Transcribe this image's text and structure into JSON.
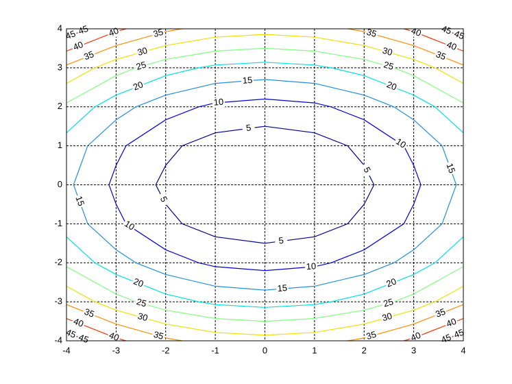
{
  "chart_data": {
    "type": "contour",
    "x": [
      -4,
      -3,
      -2,
      -1,
      0,
      1,
      2,
      3,
      4
    ],
    "y": [
      -4,
      -3,
      -2,
      -1,
      0,
      1,
      2,
      3,
      4
    ],
    "z": [
      [
        48,
        41,
        36,
        33,
        32,
        33,
        36,
        41,
        48
      ],
      [
        34,
        27,
        22,
        19,
        18,
        19,
        22,
        27,
        34
      ],
      [
        24,
        17,
        12,
        9,
        8,
        9,
        12,
        17,
        24
      ],
      [
        18,
        11,
        6,
        3,
        2,
        3,
        6,
        11,
        18
      ],
      [
        16,
        9,
        4,
        1,
        0,
        1,
        4,
        9,
        16
      ],
      [
        18,
        11,
        6,
        3,
        2,
        3,
        6,
        11,
        18
      ],
      [
        24,
        17,
        12,
        9,
        8,
        9,
        12,
        17,
        24
      ],
      [
        34,
        27,
        22,
        19,
        18,
        19,
        22,
        27,
        34
      ],
      [
        48,
        41,
        36,
        33,
        32,
        33,
        36,
        41,
        48
      ]
    ],
    "levels": [
      5,
      10,
      15,
      20,
      25,
      30,
      35,
      40,
      45
    ],
    "colors": [
      "#00008f",
      "#0000d8",
      "#1e8fe0",
      "#00e0e0",
      "#80ff80",
      "#f0e000",
      "#ff8c00",
      "#ff3000",
      "#b00000"
    ],
    "xlim": [
      -4,
      4
    ],
    "ylim": [
      -4,
      4
    ],
    "xticks": [
      -4,
      -3,
      -2,
      -1,
      0,
      1,
      2,
      3,
      4
    ],
    "yticks": [
      -4,
      -3,
      -2,
      -1,
      0,
      1,
      2,
      3,
      4
    ],
    "grid": true
  }
}
